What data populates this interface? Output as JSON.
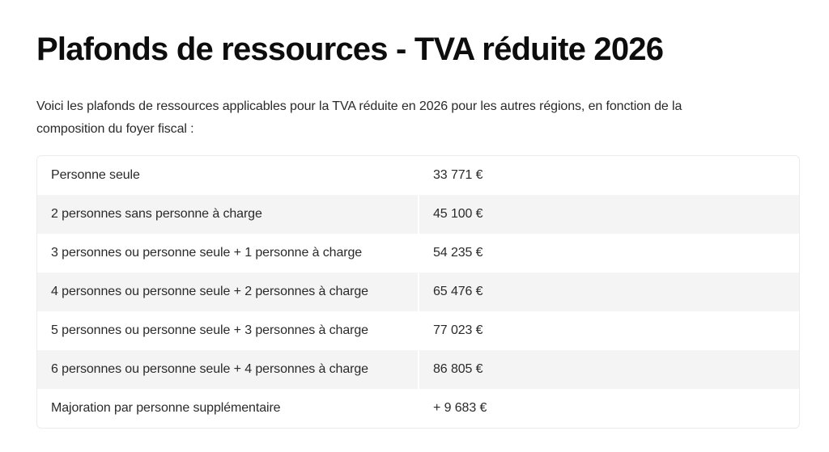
{
  "page": {
    "title": "Plafonds de ressources - TVA réduite 2026",
    "intro": "Voici les plafonds de ressources applicables pour la TVA réduite en 2026 pour les autres régions, en fonction de la composition du foyer fiscal :"
  },
  "table": {
    "rows": [
      {
        "label": "Personne seule",
        "value": "33 771 €"
      },
      {
        "label": "2 personnes sans personne à charge",
        "value": "45 100 €"
      },
      {
        "label": "3 personnes ou personne seule + 1 personne à charge",
        "value": "54 235 €"
      },
      {
        "label": "4 personnes ou personne seule + 2 personnes à charge",
        "value": "65 476 €"
      },
      {
        "label": "5 personnes ou personne seule + 3 personnes à charge",
        "value": "77 023 €"
      },
      {
        "label": "6 personnes ou personne seule + 4 personnes à charge",
        "value": "86 805 €"
      },
      {
        "label": "Majoration par personne supplémentaire",
        "value": "+ 9 683 €"
      }
    ]
  },
  "colors": {
    "shaded_row": "#f4f4f4",
    "border": "#ececec",
    "text": "#2a2a2a",
    "title": "#0d0d0d"
  }
}
